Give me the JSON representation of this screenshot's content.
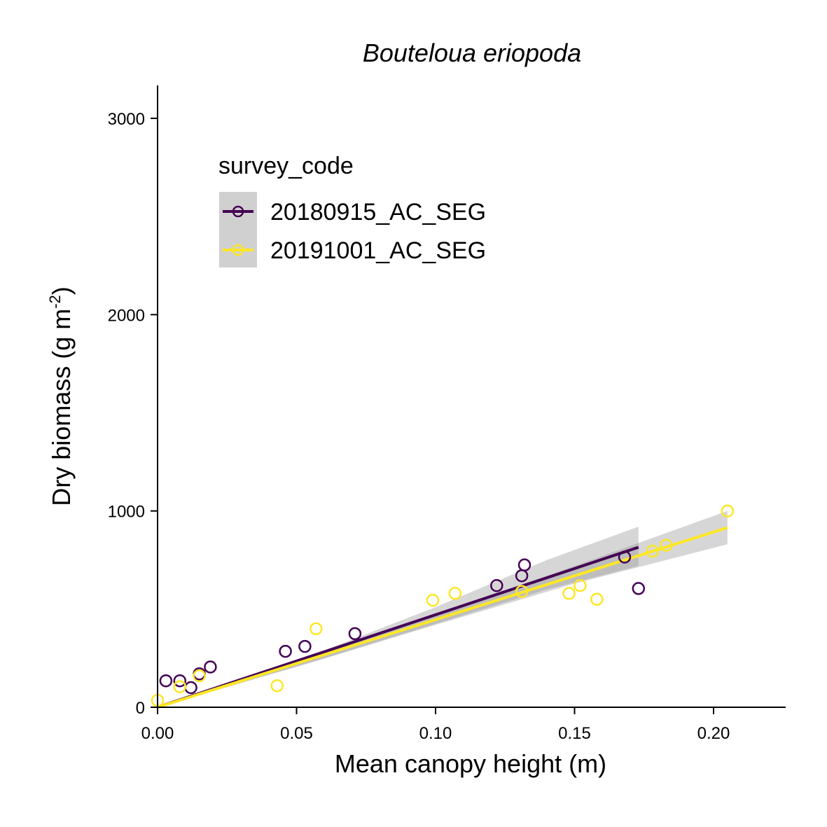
{
  "chart_data": {
    "type": "scatter",
    "title": "Bouteloua eriopoda",
    "xlabel": "Mean canopy height (m)",
    "ylabel": "Dry biomass (g m",
    "ylabel_sup": "-2",
    "ylabel_close": ")",
    "xlim": [
      0,
      0.225
    ],
    "ylim": [
      0,
      3150
    ],
    "x_ticks": [
      0,
      0.05,
      0.1,
      0.15,
      0.2
    ],
    "x_tick_labels": [
      "0.00",
      "0.05",
      "0.10",
      "0.15",
      "0.20"
    ],
    "y_ticks": [
      0,
      1000,
      2000,
      3000
    ],
    "y_tick_labels": [
      "0",
      "1000",
      "2000",
      "3000"
    ],
    "grid": false,
    "legend": {
      "title": "survey_code",
      "position": "top-left"
    },
    "series": [
      {
        "name": "20180915_AC_SEG",
        "color": "#440154",
        "points": [
          [
            0.003,
            135
          ],
          [
            0.008,
            135
          ],
          [
            0.012,
            100
          ],
          [
            0.015,
            170
          ],
          [
            0.019,
            205
          ],
          [
            0.046,
            285
          ],
          [
            0.053,
            310
          ],
          [
            0.071,
            375
          ],
          [
            0.122,
            620
          ],
          [
            0.131,
            670
          ],
          [
            0.132,
            725
          ],
          [
            0.168,
            765
          ],
          [
            0.173,
            605
          ]
        ],
        "fit": {
          "x": [
            0.0,
            0.173
          ],
          "y": [
            0,
            815
          ]
        },
        "band": {
          "x": [
            0.0,
            0.02,
            0.06,
            0.1,
            0.14,
            0.173
          ],
          "lower": [
            0,
            85,
            250,
            425,
            600,
            720
          ],
          "upper": [
            0,
            100,
            290,
            510,
            750,
            920
          ]
        }
      },
      {
        "name": "20191001_AC_SEG",
        "color": "#FDE725",
        "points": [
          [
            0.0,
            35
          ],
          [
            0.008,
            105
          ],
          [
            0.015,
            160
          ],
          [
            0.043,
            110
          ],
          [
            0.057,
            400
          ],
          [
            0.099,
            545
          ],
          [
            0.107,
            580
          ],
          [
            0.131,
            590
          ],
          [
            0.148,
            580
          ],
          [
            0.152,
            620
          ],
          [
            0.158,
            550
          ],
          [
            0.178,
            795
          ],
          [
            0.183,
            825
          ],
          [
            0.205,
            1000
          ]
        ],
        "fit": {
          "x": [
            0.0,
            0.205
          ],
          "y": [
            0,
            915
          ]
        },
        "band": {
          "x": [
            0.0,
            0.05,
            0.1,
            0.15,
            0.205
          ],
          "lower": [
            0,
            205,
            420,
            630,
            830
          ],
          "upper": [
            0,
            240,
            470,
            720,
            1000
          ]
        }
      }
    ]
  }
}
